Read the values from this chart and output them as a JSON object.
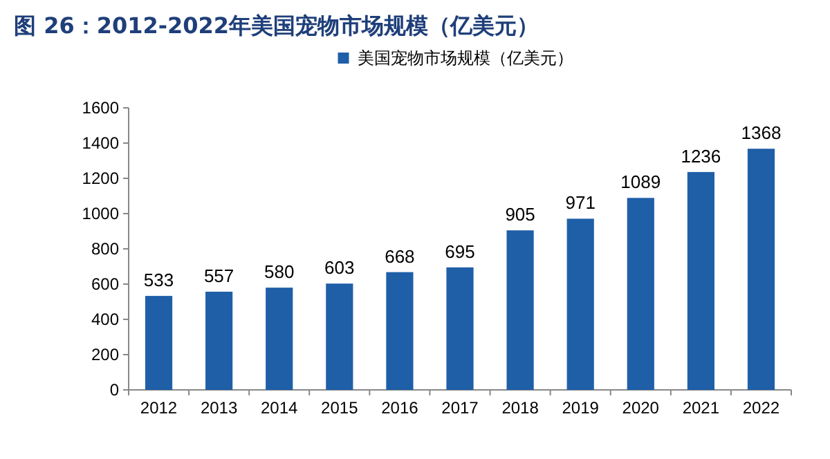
{
  "chart_data": {
    "type": "bar",
    "title": "图 26：2012-2022年美国宠物市场规模（亿美元）",
    "categories": [
      "2012",
      "2013",
      "2014",
      "2015",
      "2016",
      "2017",
      "2018",
      "2019",
      "2020",
      "2021",
      "2022"
    ],
    "series": [
      {
        "name": "美国宠物市场规模（亿美元）",
        "color": "#1f5fa8",
        "values": [
          533,
          557,
          580,
          603,
          668,
          695,
          905,
          971,
          1089,
          1236,
          1368
        ]
      }
    ],
    "ylim": [
      0,
      1600
    ],
    "yticks": [
      0,
      200,
      400,
      600,
      800,
      1000,
      1200,
      1400,
      1600
    ],
    "data_labels": true,
    "legend": "top",
    "grid": false
  }
}
